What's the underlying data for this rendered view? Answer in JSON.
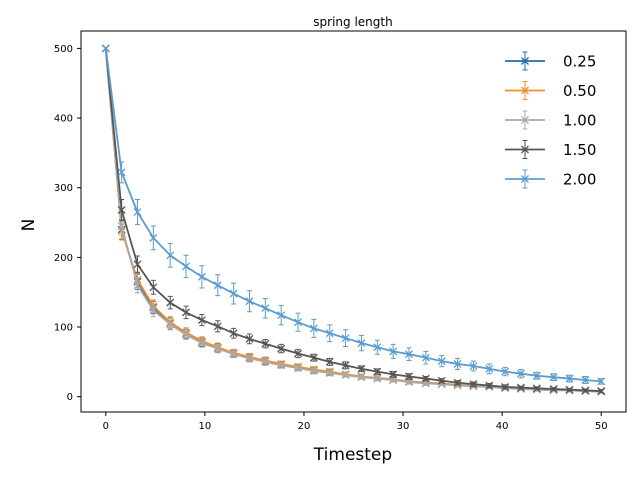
{
  "chart_data": {
    "type": "line",
    "title": "spring length",
    "xlabel": "Timestep",
    "ylabel": "N",
    "xlim": [
      -2.5,
      52.5
    ],
    "ylim": [
      -22,
      525
    ],
    "xticks": [
      0,
      10,
      20,
      30,
      40,
      50
    ],
    "yticks": [
      0,
      100,
      200,
      300,
      400,
      500
    ],
    "grid": false,
    "legend_position": "top-right",
    "x": [
      0,
      1.6,
      3.2,
      4.8,
      6.5,
      8.1,
      9.7,
      11.3,
      12.9,
      14.5,
      16.1,
      17.7,
      19.4,
      21.0,
      22.6,
      24.2,
      25.8,
      27.4,
      29.0,
      30.6,
      32.3,
      33.9,
      35.5,
      37.1,
      38.7,
      40.3,
      41.9,
      43.5,
      45.2,
      46.8,
      48.4,
      50.0
    ],
    "series": [
      {
        "name": "0.25",
        "color": "#1f6ea5",
        "values": [
          500,
          240,
          165,
          128,
          105,
          90,
          78,
          70,
          62,
          56,
          51,
          46,
          42,
          38,
          35,
          32,
          29,
          26,
          24,
          22,
          20,
          18,
          17,
          15,
          14,
          13,
          12,
          11,
          10,
          9,
          8,
          8
        ],
        "err": [
          0,
          14,
          11,
          9,
          8,
          7,
          6,
          6,
          5,
          5,
          5,
          4,
          4,
          4,
          4,
          3,
          3,
          3,
          3,
          3,
          3,
          2,
          2,
          2,
          2,
          2,
          2,
          2,
          2,
          2,
          2,
          2
        ]
      },
      {
        "name": "0.50",
        "color": "#f28e2b",
        "values": [
          500,
          238,
          168,
          130,
          107,
          92,
          80,
          71,
          63,
          57,
          52,
          47,
          43,
          39,
          36,
          32,
          29,
          27,
          25,
          22,
          20,
          19,
          17,
          16,
          14,
          13,
          12,
          11,
          10,
          9,
          9,
          8
        ],
        "err": [
          0,
          13,
          11,
          9,
          8,
          7,
          6,
          6,
          5,
          5,
          5,
          4,
          4,
          4,
          4,
          3,
          3,
          3,
          3,
          3,
          3,
          2,
          2,
          2,
          2,
          2,
          2,
          2,
          2,
          2,
          2,
          2
        ]
      },
      {
        "name": "1.00",
        "color": "#a9a9a9",
        "values": [
          500,
          245,
          160,
          124,
          104,
          89,
          77,
          69,
          61,
          55,
          50,
          45,
          41,
          37,
          34,
          31,
          28,
          26,
          24,
          21,
          19,
          18,
          16,
          15,
          14,
          12,
          11,
          10,
          9,
          9,
          8,
          7
        ],
        "err": [
          0,
          13,
          11,
          9,
          8,
          7,
          6,
          6,
          5,
          5,
          5,
          4,
          4,
          4,
          4,
          3,
          3,
          3,
          3,
          3,
          3,
          2,
          2,
          2,
          2,
          2,
          2,
          2,
          2,
          2,
          2,
          2
        ]
      },
      {
        "name": "1.50",
        "color": "#555555",
        "values": [
          500,
          268,
          190,
          157,
          135,
          121,
          110,
          101,
          91,
          83,
          76,
          69,
          62,
          56,
          50,
          45,
          40,
          36,
          32,
          29,
          26,
          23,
          20,
          18,
          16,
          14,
          13,
          12,
          11,
          10,
          9,
          8
        ],
        "err": [
          0,
          15,
          12,
          10,
          9,
          9,
          8,
          8,
          7,
          7,
          6,
          6,
          6,
          5,
          5,
          5,
          4,
          4,
          4,
          4,
          3,
          3,
          3,
          3,
          3,
          3,
          2,
          2,
          2,
          2,
          2,
          2
        ]
      },
      {
        "name": "2.00",
        "color": "#5b9bd0",
        "values": [
          500,
          322,
          265,
          228,
          203,
          187,
          172,
          160,
          148,
          137,
          127,
          117,
          107,
          98,
          91,
          84,
          77,
          71,
          65,
          61,
          56,
          51,
          47,
          44,
          40,
          36,
          33,
          30,
          28,
          26,
          24,
          22
        ],
        "err": [
          0,
          15,
          18,
          17,
          17,
          16,
          16,
          15,
          15,
          15,
          14,
          14,
          13,
          13,
          12,
          12,
          11,
          10,
          10,
          9,
          9,
          8,
          8,
          7,
          7,
          6,
          6,
          5,
          5,
          5,
          5,
          4
        ]
      }
    ]
  }
}
